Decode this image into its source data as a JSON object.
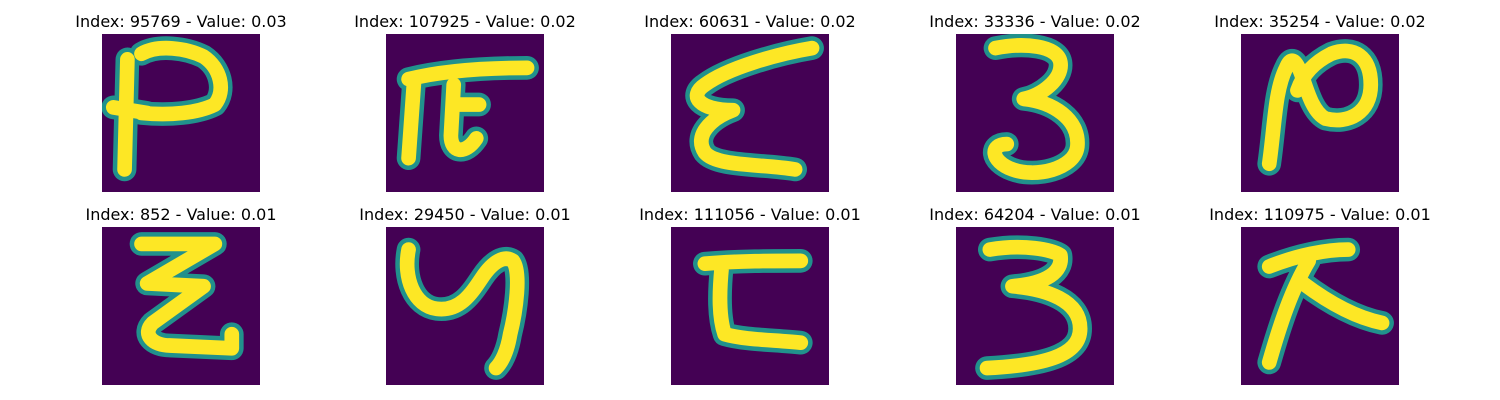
{
  "figure": {
    "background_color": "#ffffff",
    "image_background_color": "#440154",
    "stroke_color": "#fde725",
    "edge_color": "#21918c",
    "panels": [
      {
        "title": "Index: 95769 - Value: 0.03",
        "glyph": "glyph-95769"
      },
      {
        "title": "Index: 107925 - Value: 0.02",
        "glyph": "glyph-107925"
      },
      {
        "title": "Index: 60631 - Value: 0.02",
        "glyph": "glyph-60631"
      },
      {
        "title": "Index: 33336 - Value: 0.02",
        "glyph": "glyph-33336"
      },
      {
        "title": "Index: 35254 - Value: 0.02",
        "glyph": "glyph-35254"
      },
      {
        "title": "Index: 852 - Value: 0.01",
        "glyph": "glyph-852"
      },
      {
        "title": "Index: 29450 - Value: 0.01",
        "glyph": "glyph-29450"
      },
      {
        "title": "Index: 111056 - Value: 0.01",
        "glyph": "glyph-111056"
      },
      {
        "title": "Index: 64204 - Value: 0.01",
        "glyph": "glyph-64204"
      },
      {
        "title": "Index: 110975 - Value: 0.01",
        "glyph": "glyph-110975"
      }
    ]
  }
}
